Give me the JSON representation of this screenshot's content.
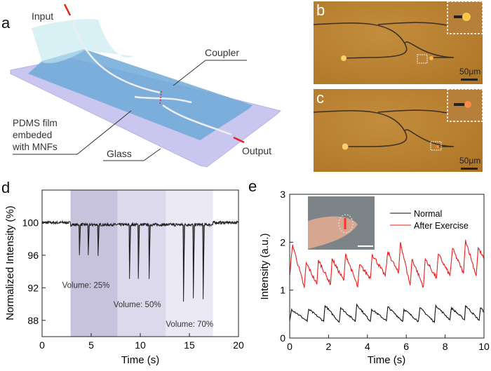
{
  "panel_a": {
    "letter": "a",
    "labels": {
      "input": "Input",
      "coupler": "Coupler",
      "pdms": [
        "PDMS film",
        "embeded",
        "with MNFs"
      ],
      "glass": "Glass",
      "output": "Output"
    },
    "colors": {
      "glass": "#c9c6ef",
      "film": "#6fa9d8",
      "arrow": "#e5231f"
    }
  },
  "panel_b": {
    "letter": "b",
    "scale_bar": "50μm"
  },
  "panel_c": {
    "letter": "c",
    "scale_bar": "50μm"
  },
  "chart_data": [
    {
      "id": "d",
      "letter": "d",
      "type": "line",
      "xlabel": "Time (s)",
      "ylabel": "Normalized Intensity (%)",
      "xlim": [
        0,
        20
      ],
      "ylim": [
        86,
        104
      ],
      "xticks": [
        0,
        5,
        10,
        15,
        20
      ],
      "yticks": [
        88,
        92,
        96,
        100
      ],
      "baseline": 100,
      "line_color": "#222222",
      "regions": [
        {
          "label": "Volume: 25%",
          "x": [
            2.9,
            7.7
          ],
          "color": "#c7c3dd"
        },
        {
          "label": "Volume: 50%",
          "x": [
            7.7,
            12.6
          ],
          "color": "#dcd9ec"
        },
        {
          "label": "Volume: 70%",
          "x": [
            12.6,
            17.4
          ],
          "color": "#ebe9f5"
        }
      ],
      "dips": [
        {
          "t": 3.8,
          "min": 96.0
        },
        {
          "t": 4.7,
          "min": 96.0
        },
        {
          "t": 5.7,
          "min": 95.9
        },
        {
          "t": 8.9,
          "min": 93.1
        },
        {
          "t": 9.8,
          "min": 93.1
        },
        {
          "t": 10.9,
          "min": 93.1
        },
        {
          "t": 14.4,
          "min": 90.3
        },
        {
          "t": 15.4,
          "min": 90.7
        },
        {
          "t": 16.4,
          "min": 90.6
        }
      ]
    },
    {
      "id": "e",
      "letter": "e",
      "type": "line",
      "xlabel": "Time (s)",
      "ylabel": "Intensity (a.u.)",
      "xlim": [
        0,
        10
      ],
      "ylim": [
        0,
        3
      ],
      "xticks": [
        0,
        2,
        4,
        6,
        8,
        10
      ],
      "yticks": [
        0,
        1,
        2,
        3
      ],
      "legend_position": "top-right",
      "series": [
        {
          "name": "Normal",
          "color": "#111111",
          "x": [
            0,
            0.1,
            0.9,
            0.98,
            1.75,
            1.82,
            2.55,
            2.62,
            3.38,
            3.45,
            4.15,
            4.22,
            4.98,
            5.05,
            5.82,
            5.88,
            6.62,
            6.7,
            7.45,
            7.52,
            8.25,
            8.32,
            9.0,
            9.05,
            9.75,
            9.82,
            10
          ],
          "y": [
            0.35,
            0.6,
            0.35,
            0.6,
            0.35,
            0.68,
            0.33,
            0.63,
            0.35,
            0.7,
            0.35,
            0.6,
            0.36,
            0.65,
            0.35,
            0.6,
            0.35,
            0.63,
            0.33,
            0.68,
            0.38,
            0.63,
            0.38,
            0.68,
            0.37,
            0.63,
            0.55
          ]
        },
        {
          "name": "After Exercise",
          "color": "#ee1c1c",
          "x": [
            0,
            0.15,
            0.75,
            0.85,
            1.4,
            1.48,
            2.1,
            2.18,
            2.78,
            2.88,
            3.5,
            3.6,
            4.15,
            4.25,
            4.92,
            5.05,
            5.6,
            5.7,
            6.2,
            6.3,
            6.88,
            6.98,
            7.55,
            7.65,
            8.25,
            8.38,
            8.95,
            9.05,
            9.6,
            9.7,
            10
          ],
          "y": [
            1.3,
            1.95,
            1.05,
            1.57,
            1.12,
            1.63,
            1.12,
            1.65,
            1.2,
            1.75,
            1.07,
            1.53,
            1.25,
            1.75,
            1.3,
            1.8,
            1.35,
            2.0,
            1.1,
            1.65,
            1.07,
            1.65,
            1.25,
            1.75,
            1.3,
            1.87,
            1.35,
            2.05,
            1.3,
            1.88,
            1.65
          ]
        }
      ]
    }
  ]
}
